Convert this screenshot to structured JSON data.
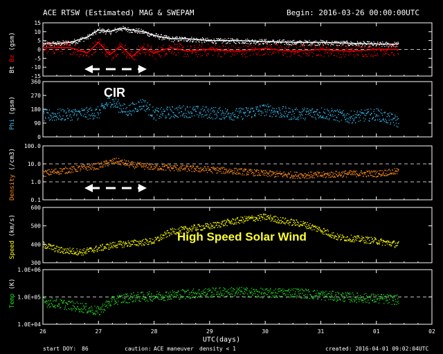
{
  "header": {
    "title": "ACE RTSW (Estimated) MAG & SWEPAM",
    "begin": "Begin: 2016-03-26 00:00:00UTC"
  },
  "footer": {
    "start_doy_label": "start DOY:",
    "start_doy_value": "86",
    "caution_label": "caution:",
    "caution_maneuver": "ACE maneuver",
    "caution_density": "density < 1",
    "created": "created: 2016-04-01 09:02:04UTC",
    "xaxis_label": "UTC(days)"
  },
  "colors": {
    "background": "#000000",
    "bt": "#ffffff",
    "bz": "#ff0000",
    "phi": "#33bbee",
    "density": "#ff8c1a",
    "speed": "#ffff00",
    "temp": "#22dd22",
    "annotation": "#ffff33"
  },
  "annotations": {
    "cir": "CIR",
    "hss": "High Speed Solar Wind"
  },
  "chart_data": [
    {
      "type": "line",
      "panel": "mag",
      "ylabel_parts": [
        "Bt",
        "Bz",
        "(gsm)"
      ],
      "yticks": [
        "15",
        "10",
        "5",
        "0",
        "-5",
        "-10",
        "-15"
      ],
      "ylim": [
        -15,
        15
      ],
      "x_ticklabels": [
        "26",
        "27",
        "28",
        "29",
        "30",
        "31",
        "01",
        "02"
      ],
      "x": [
        26.0,
        26.5,
        26.8,
        27.0,
        27.2,
        27.4,
        27.6,
        27.8,
        28.0,
        28.3,
        28.6,
        29.0,
        29.5,
        30.0,
        30.5,
        31.0,
        31.5,
        32.0,
        32.4
      ],
      "series": [
        {
          "name": "Bt",
          "values": [
            3,
            4,
            7,
            11,
            10,
            12,
            11,
            10,
            8,
            6,
            6,
            5,
            5,
            4.5,
            4,
            4,
            3.5,
            3,
            3
          ]
        },
        {
          "name": "Bz",
          "values": [
            1,
            1,
            -2,
            4,
            -3,
            2,
            -4,
            1,
            -2,
            1,
            -1,
            0,
            -1,
            0.5,
            -1,
            0,
            -1,
            0,
            0
          ]
        }
      ],
      "grid_lines": [
        0
      ]
    },
    {
      "type": "scatter",
      "panel": "phi",
      "ylabel_parts": [
        "Phi",
        "(gsm)"
      ],
      "yticks": [
        "360",
        "270",
        "180",
        "90",
        "0"
      ],
      "ylim": [
        0,
        360
      ],
      "x": [
        26.0,
        26.5,
        27.0,
        27.2,
        27.5,
        27.8,
        28.0,
        28.5,
        29.0,
        29.5,
        30.0,
        30.5,
        31.0,
        31.5,
        32.0,
        32.4
      ],
      "series": [
        {
          "name": "Phi",
          "values": [
            140,
            150,
            160,
            240,
            170,
            220,
            150,
            170,
            160,
            150,
            180,
            150,
            160,
            130,
            150,
            100
          ]
        }
      ]
    },
    {
      "type": "scatter",
      "panel": "density",
      "ylabel_parts": [
        "Density",
        "(/cm3)"
      ],
      "yticks": [
        "100.0",
        "10.0",
        "1.0",
        "0.1"
      ],
      "yscale": "log",
      "ylim": [
        0.1,
        100
      ],
      "x": [
        26.0,
        26.5,
        27.0,
        27.3,
        27.6,
        28.0,
        28.5,
        29.0,
        29.5,
        30.0,
        30.5,
        31.0,
        31.5,
        32.0,
        32.4
      ],
      "series": [
        {
          "name": "Density",
          "values": [
            3,
            5,
            8,
            15,
            9,
            7,
            6,
            5,
            4,
            3,
            2.5,
            2.5,
            3,
            3,
            4
          ]
        }
      ],
      "grid_lines": [
        10,
        1
      ]
    },
    {
      "type": "line",
      "panel": "speed",
      "ylabel_parts": [
        "Speed",
        "(km/s)"
      ],
      "yticks": [
        "600",
        "500",
        "400",
        "300"
      ],
      "ylim": [
        300,
        600
      ],
      "x": [
        26.0,
        26.3,
        26.7,
        27.0,
        27.3,
        27.7,
        28.0,
        28.3,
        28.7,
        29.0,
        29.3,
        29.7,
        30.0,
        30.3,
        30.7,
        31.0,
        31.3,
        31.7,
        32.0,
        32.4
      ],
      "series": [
        {
          "name": "Speed",
          "values": [
            400,
            370,
            360,
            380,
            400,
            410,
            420,
            470,
            490,
            500,
            520,
            540,
            550,
            530,
            510,
            480,
            440,
            430,
            420,
            400
          ]
        }
      ]
    },
    {
      "type": "scatter",
      "panel": "temp",
      "ylabel_parts": [
        "Temp",
        "(K)"
      ],
      "yticks": [
        "1.0E+06",
        "1.0E+05",
        "1.0E+04"
      ],
      "yscale": "log",
      "ylim": [
        10000,
        1000000
      ],
      "x": [
        26.0,
        26.5,
        27.0,
        27.3,
        27.6,
        28.0,
        28.5,
        29.0,
        29.5,
        30.0,
        30.5,
        31.0,
        31.5,
        32.0,
        32.4
      ],
      "series": [
        {
          "name": "Temp",
          "values": [
            70000,
            50000,
            30000,
            80000,
            100000,
            110000,
            130000,
            150000,
            160000,
            140000,
            150000,
            120000,
            100000,
            90000,
            80000
          ]
        }
      ],
      "grid_lines": [
        100000
      ]
    }
  ]
}
